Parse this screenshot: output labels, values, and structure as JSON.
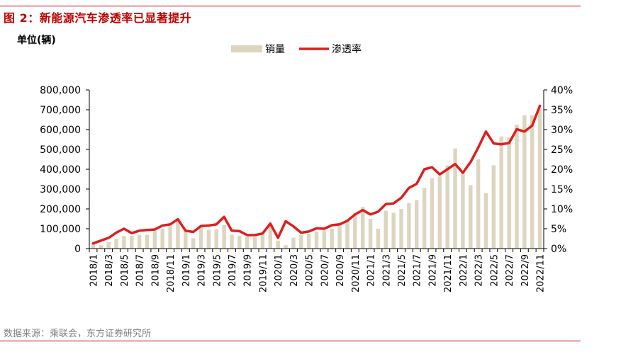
{
  "figure": {
    "title": "图 2：新能源汽车渗透率已显著提升",
    "source": "数据来源：乘联会，东方证券研究所"
  },
  "colors": {
    "accent": "#c00000",
    "bar": "#ddd5bf",
    "line": "#dd1e1e",
    "text": "#000000",
    "source_text": "#808080"
  },
  "chart_data": {
    "type": "bar+line",
    "ylabel_left": "单位(辆)",
    "ylim_left": [
      0,
      800000
    ],
    "ylim_right": [
      0,
      40
    ],
    "yticks_left": [
      "800,000",
      "700,000",
      "600,000",
      "500,000",
      "400,000",
      "300,000",
      "200,000",
      "100,000",
      "0"
    ],
    "yticks_right": [
      "40%",
      "35%",
      "30%",
      "25%",
      "20%",
      "15%",
      "10%",
      "5%",
      "0%"
    ],
    "legend": {
      "position": "top-center",
      "bar_label": "销量",
      "line_label": "渗透率"
    },
    "categories": [
      "2018/1",
      "2018/2",
      "2018/3",
      "2018/4",
      "2018/5",
      "2018/6",
      "2018/7",
      "2018/8",
      "2018/9",
      "2018/10",
      "2018/11",
      "2018/12",
      "2019/1",
      "2019/2",
      "2019/3",
      "2019/4",
      "2019/5",
      "2019/6",
      "2019/7",
      "2019/8",
      "2019/9",
      "2019/10",
      "2019/11",
      "2019/12",
      "2020/1",
      "2020/2",
      "2020/3",
      "2020/4",
      "2020/5",
      "2020/6",
      "2020/7",
      "2020/8",
      "2020/9",
      "2020/10",
      "2020/11",
      "2020/12",
      "2021/1",
      "2021/2",
      "2021/3",
      "2021/4",
      "2021/5",
      "2021/6",
      "2021/7",
      "2021/8",
      "2021/9",
      "2021/10",
      "2021/11",
      "2021/12",
      "2022/1",
      "2022/2",
      "2022/3",
      "2022/4",
      "2022/5",
      "2022/6",
      "2022/7",
      "2022/8",
      "2022/9",
      "2022/10",
      "2022/11"
    ],
    "xtick_labels": [
      "2018/1",
      "2018/3",
      "2018/5",
      "2018/7",
      "2018/9",
      "2018/11",
      "2019/1",
      "2019/3",
      "2019/5",
      "2019/7",
      "2019/9",
      "2019/11",
      "2020/1",
      "2020/3",
      "2020/5",
      "2020/7",
      "2020/9",
      "2020/11",
      "2021/1",
      "2021/3",
      "2021/5",
      "2021/7",
      "2021/9",
      "2021/11",
      "2022/1",
      "2022/3",
      "2022/5",
      "2022/7",
      "2022/9",
      "2022/11"
    ],
    "series": [
      {
        "name": "销量",
        "type": "bar",
        "axis": "left",
        "values": [
          25000,
          17000,
          33000,
          50000,
          63000,
          65000,
          70000,
          70000,
          90000,
          100000,
          120000,
          148000,
          93000,
          52000,
          110000,
          95000,
          98000,
          118000,
          70000,
          65000,
          60000,
          58000,
          80000,
          118000,
          40000,
          17000,
          55000,
          67000,
          75000,
          85000,
          92000,
          100000,
          127000,
          145000,
          180000,
          210000,
          150000,
          100000,
          190000,
          180000,
          200000,
          230000,
          245000,
          305000,
          355000,
          365000,
          420000,
          505000,
          390000,
          320000,
          450000,
          280000,
          420000,
          565000,
          560000,
          625000,
          672000,
          672000,
          706000
        ]
      },
      {
        "name": "渗透率",
        "type": "line",
        "axis": "right",
        "values": [
          1.3,
          2.0,
          2.7,
          4.0,
          5.0,
          3.9,
          4.5,
          4.7,
          4.8,
          5.8,
          6.1,
          7.4,
          4.5,
          4.2,
          5.7,
          5.8,
          6.1,
          8.0,
          4.5,
          4.4,
          3.4,
          3.4,
          3.8,
          6.3,
          2.7,
          6.9,
          5.6,
          4.0,
          4.3,
          5.1,
          5.0,
          5.9,
          6.1,
          7.0,
          8.6,
          9.7,
          8.6,
          9.3,
          11.2,
          11.4,
          12.8,
          15.3,
          16.3,
          20.0,
          20.5,
          18.7,
          20.0,
          21.3,
          19.1,
          21.8,
          25.5,
          29.5,
          26.5,
          26.3,
          26.6,
          30.1,
          29.5,
          31.0,
          36.0
        ]
      }
    ]
  }
}
